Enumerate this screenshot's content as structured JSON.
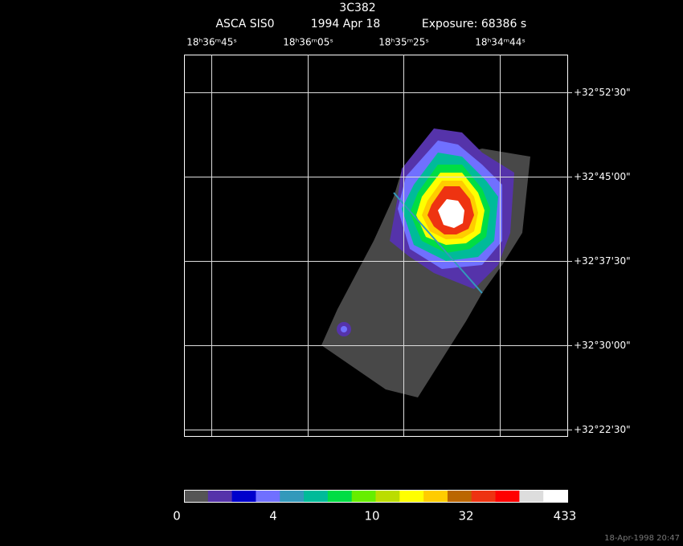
{
  "header": {
    "title": "3C382",
    "instrument": "ASCA SIS0",
    "date": "1994 Apr 18",
    "exposure": "Exposure: 68386 s"
  },
  "ra_labels": [
    "18ʰ36ᵐ45ˢ",
    "18ʰ36ᵐ05ˢ",
    "18ʰ35ᵐ25ˢ",
    "18ʰ34ᵐ44ˢ"
  ],
  "dec_labels": [
    "+32°52'30\"",
    "+32°45'00\"",
    "+32°37'30\"",
    "+32°30'00\"",
    "+32°22'30\""
  ],
  "colorbar": {
    "colors": [
      "#555555",
      "#5533aa",
      "#0000cc",
      "#7070ff",
      "#3399bb",
      "#00bb99",
      "#00dd44",
      "#66ee00",
      "#bbdd00",
      "#ffff00",
      "#ffcc00",
      "#bb6600",
      "#ee3311",
      "#ff0000",
      "#dddddd",
      "#ffffff"
    ],
    "labels": [
      "0",
      "4",
      "10",
      "32",
      "433"
    ]
  },
  "timestamp": "18-Apr-1998 20:47"
}
